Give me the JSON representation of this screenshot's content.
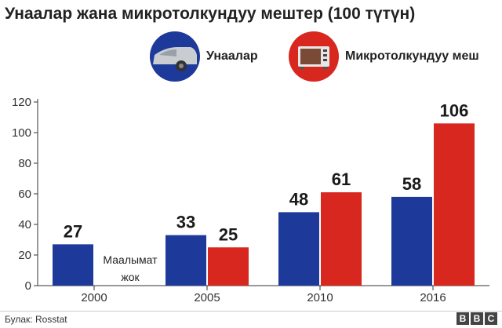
{
  "colors": {
    "cars": "#1d3a9a",
    "microwaves": "#d8271f",
    "axis": "#333333",
    "grid": "#cccccc"
  },
  "icons": {
    "cars": "car-icon",
    "microwaves": "microwave-icon"
  },
  "chart_data": {
    "type": "bar",
    "title": "Унаалар жана микротолкундуу мештер (100 түтүн)",
    "categories": [
      "2000",
      "2005",
      "2010",
      "2016"
    ],
    "series": [
      {
        "name": "Унаалар",
        "values": [
          27,
          33,
          48,
          58
        ],
        "labels": [
          "27",
          "33",
          "48",
          "58"
        ]
      },
      {
        "name": "Микротолкундуу меш",
        "values": [
          null,
          25,
          61,
          106
        ],
        "labels": [
          "",
          "25",
          "61",
          "106"
        ]
      }
    ],
    "yticks": [
      "0",
      "20",
      "40",
      "60",
      "80",
      "100",
      "120"
    ],
    "ylim": [
      0,
      120
    ],
    "xlabel": "",
    "ylabel": "",
    "legend": "top-right",
    "annotations": {
      "no_data_line1": "Маалымат",
      "no_data_line2": "жок"
    }
  },
  "footer": {
    "source": "Булак: Rosstat",
    "logo": [
      "B",
      "B",
      "C"
    ]
  }
}
